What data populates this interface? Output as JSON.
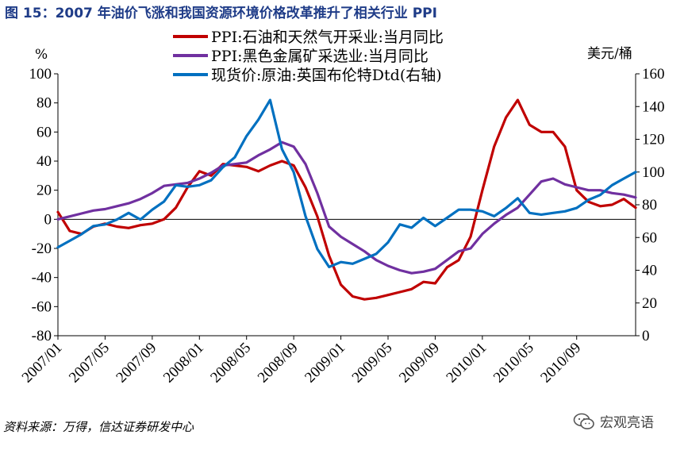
{
  "title": "图 15：2007 年油价飞涨和我国资源环境价格改革推升了相关行业 PPI",
  "source": "资料来源：万得，信达证券研发中心",
  "watermark": "宏观亮语",
  "chart_data": {
    "type": "line",
    "left_unit": "%",
    "right_unit": "美元/桶",
    "left_ylim": [
      -80,
      100
    ],
    "left_ticks": [
      100,
      80,
      60,
      40,
      20,
      0,
      -20,
      -40,
      -60,
      -80
    ],
    "right_ylim": [
      0,
      160
    ],
    "right_ticks": [
      160,
      140,
      120,
      100,
      80,
      60,
      40,
      20,
      0
    ],
    "x_range": [
      "2007/01",
      "2011/02"
    ],
    "x_tick_labels": [
      "2007/01",
      "2007/05",
      "2007/09",
      "2008/01",
      "2008/05",
      "2008/09",
      "2009/01",
      "2009/05",
      "2009/09",
      "2010/01",
      "2010/05",
      "2010/09"
    ],
    "legend_position": "top",
    "series": [
      {
        "name": "PPI:石油和天然气开采业:当月同比",
        "color": "#c00000",
        "axis": "left",
        "x": [
          "2007/01",
          "2007/02",
          "2007/03",
          "2007/04",
          "2007/05",
          "2007/06",
          "2007/07",
          "2007/08",
          "2007/09",
          "2007/10",
          "2007/11",
          "2007/12",
          "2008/01",
          "2008/02",
          "2008/03",
          "2008/04",
          "2008/05",
          "2008/06",
          "2008/07",
          "2008/08",
          "2008/09",
          "2008/10",
          "2008/11",
          "2008/12",
          "2009/01",
          "2009/02",
          "2009/03",
          "2009/04",
          "2009/05",
          "2009/06",
          "2009/07",
          "2009/08",
          "2009/09",
          "2009/10",
          "2009/11",
          "2009/12",
          "2010/01",
          "2010/02",
          "2010/03",
          "2010/04",
          "2010/05",
          "2010/06",
          "2010/07",
          "2010/08",
          "2010/09",
          "2010/10",
          "2010/11",
          "2010/12",
          "2011/01",
          "2011/02"
        ],
        "values": [
          5,
          -8,
          -10,
          -5,
          -3,
          -5,
          -6,
          -4,
          -3,
          0,
          8,
          22,
          33,
          30,
          38,
          37,
          36,
          33,
          37,
          40,
          37,
          22,
          2,
          -25,
          -45,
          -53,
          -55,
          -54,
          -52,
          -50,
          -48,
          -43,
          -44,
          -33,
          -28,
          -12,
          20,
          50,
          70,
          82,
          65,
          60,
          60,
          50,
          20,
          12,
          9,
          10,
          14,
          8
        ]
      },
      {
        "name": "PPI:黑色金属矿采选业:当月同比",
        "color": "#7030a0",
        "axis": "left",
        "x": [
          "2007/01",
          "2007/02",
          "2007/03",
          "2007/04",
          "2007/05",
          "2007/06",
          "2007/07",
          "2007/08",
          "2007/09",
          "2007/10",
          "2007/11",
          "2007/12",
          "2008/01",
          "2008/02",
          "2008/03",
          "2008/04",
          "2008/05",
          "2008/06",
          "2008/07",
          "2008/08",
          "2008/09",
          "2008/10",
          "2008/11",
          "2008/12",
          "2009/01",
          "2009/02",
          "2009/03",
          "2009/04",
          "2009/05",
          "2009/06",
          "2009/07",
          "2009/08",
          "2009/09",
          "2009/10",
          "2009/11",
          "2009/12",
          "2010/01",
          "2010/02",
          "2010/03",
          "2010/04",
          "2010/05",
          "2010/06",
          "2010/07",
          "2010/08",
          "2010/09",
          "2010/10",
          "2010/11",
          "2010/12",
          "2011/01",
          "2011/02"
        ],
        "values": [
          0,
          2,
          4,
          6,
          7,
          9,
          11,
          14,
          18,
          23,
          24,
          25,
          28,
          32,
          37,
          38,
          39,
          44,
          48,
          53,
          50,
          38,
          18,
          -5,
          -12,
          -17,
          -22,
          -28,
          -32,
          -35,
          -37,
          -36,
          -34,
          -28,
          -22,
          -20,
          -10,
          -3,
          3,
          8,
          17,
          26,
          28,
          24,
          22,
          20,
          20,
          18,
          17,
          15
        ]
      },
      {
        "name": "现货价:原油:英国布伦特Dtd(右轴)",
        "color": "#0070c0",
        "axis": "right",
        "x": [
          "2007/01",
          "2007/02",
          "2007/03",
          "2007/04",
          "2007/05",
          "2007/06",
          "2007/07",
          "2007/08",
          "2007/09",
          "2007/10",
          "2007/11",
          "2007/12",
          "2008/01",
          "2008/02",
          "2008/03",
          "2008/04",
          "2008/05",
          "2008/06",
          "2008/07",
          "2008/08",
          "2008/09",
          "2008/10",
          "2008/11",
          "2008/12",
          "2009/01",
          "2009/02",
          "2009/03",
          "2009/04",
          "2009/05",
          "2009/06",
          "2009/07",
          "2009/08",
          "2009/09",
          "2009/10",
          "2009/11",
          "2009/12",
          "2010/01",
          "2010/02",
          "2010/03",
          "2010/04",
          "2010/05",
          "2010/06",
          "2010/07",
          "2010/08",
          "2010/09",
          "2010/10",
          "2010/11",
          "2010/12",
          "2011/01",
          "2011/02"
        ],
        "values": [
          54,
          58,
          62,
          67,
          68,
          71,
          75,
          71,
          77,
          82,
          92,
          91,
          92,
          95,
          103,
          109,
          122,
          132,
          144,
          114,
          100,
          73,
          53,
          42,
          45,
          44,
          47,
          50,
          57,
          68,
          66,
          72,
          67,
          72,
          77,
          77,
          76,
          73,
          78,
          84,
          75,
          74,
          75,
          76,
          78,
          83,
          86,
          92,
          96,
          100
        ]
      }
    ]
  }
}
